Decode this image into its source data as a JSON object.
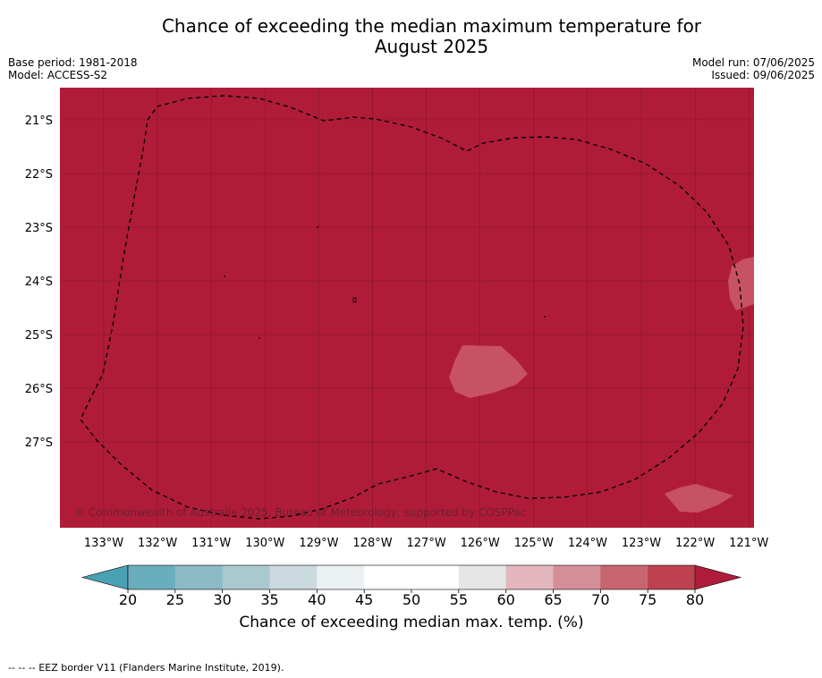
{
  "header": {
    "title_line1": "Chance of exceeding the median maximum temperature for",
    "title_line2": "August 2025",
    "base_period": "Base period: 1981-2018",
    "model": "Model: ACCESS-S2",
    "model_run": "Model run: 07/06/2025",
    "issued": "Issued: 09/06/2025"
  },
  "map": {
    "copyright": "© Commonwealth of Australia 2025, Bureau of Meteorology, supported by COSPPac",
    "lat_labels": [
      "21°S",
      "22°S",
      "23°S",
      "24°S",
      "25°S",
      "26°S",
      "27°S"
    ],
    "lon_labels": [
      "133°W",
      "132°W",
      "131°W",
      "130°W",
      "129°W",
      "128°W",
      "127°W",
      "126°W",
      "125°W",
      "124°W",
      "123°W",
      "122°W",
      "121°W"
    ],
    "background_color": "#b01c38",
    "patch_color": "#c75262"
  },
  "colorbar": {
    "ticks": [
      "20",
      "25",
      "30",
      "35",
      "40",
      "45",
      "50",
      "55",
      "60",
      "65",
      "70",
      "75",
      "80"
    ],
    "colors": [
      "#6aaebe",
      "#8cbac6",
      "#aac9cf",
      "#cbdadf",
      "#ebf1f3",
      "#ffffff",
      "#ffffff",
      "#e6e6e7",
      "#e3b7bd",
      "#d48e98",
      "#c76570",
      "#bd414f"
    ],
    "under_color": "#4aa1b3",
    "over_color": "#ae1c3a",
    "label": "Chance of exceeding median max. temp. (%)"
  },
  "footnote": "--  --  -- EEZ border V11 (Flanders Marine Institute, 2019)."
}
